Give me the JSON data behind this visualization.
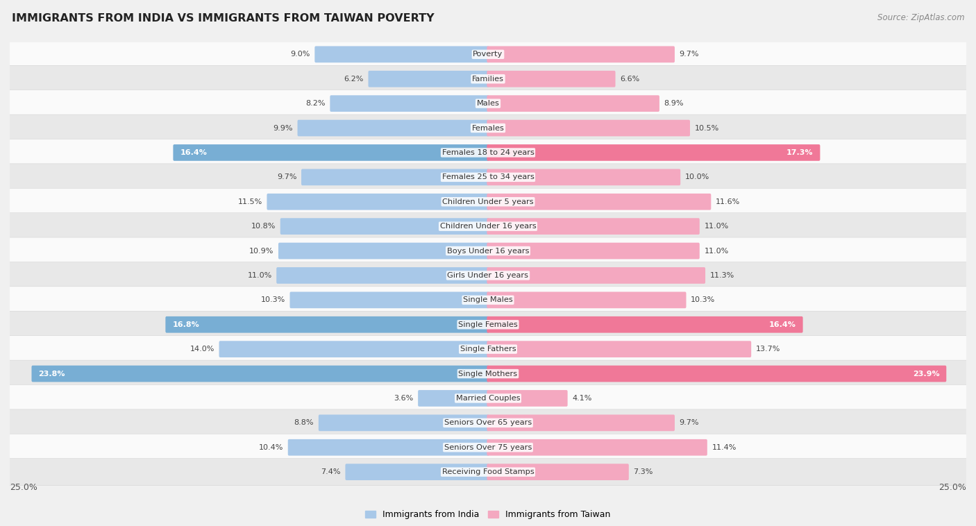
{
  "title": "IMMIGRANTS FROM INDIA VS IMMIGRANTS FROM TAIWAN POVERTY",
  "source": "Source: ZipAtlas.com",
  "categories": [
    "Poverty",
    "Families",
    "Males",
    "Females",
    "Females 18 to 24 years",
    "Females 25 to 34 years",
    "Children Under 5 years",
    "Children Under 16 years",
    "Boys Under 16 years",
    "Girls Under 16 years",
    "Single Males",
    "Single Females",
    "Single Fathers",
    "Single Mothers",
    "Married Couples",
    "Seniors Over 65 years",
    "Seniors Over 75 years",
    "Receiving Food Stamps"
  ],
  "india_values": [
    9.0,
    6.2,
    8.2,
    9.9,
    16.4,
    9.7,
    11.5,
    10.8,
    10.9,
    11.0,
    10.3,
    16.8,
    14.0,
    23.8,
    3.6,
    8.8,
    10.4,
    7.4
  ],
  "taiwan_values": [
    9.7,
    6.6,
    8.9,
    10.5,
    17.3,
    10.0,
    11.6,
    11.0,
    11.0,
    11.3,
    10.3,
    16.4,
    13.7,
    23.9,
    4.1,
    9.7,
    11.4,
    7.3
  ],
  "india_color_normal": "#a8c8e8",
  "taiwan_color_normal": "#f4a8c0",
  "india_color_highlight": "#78aed4",
  "taiwan_color_highlight": "#f07898",
  "highlight_rows": [
    4,
    11,
    13
  ],
  "xlim": 25.0,
  "bar_height": 0.55,
  "background_color": "#f0f0f0",
  "row_bg_white": "#fafafa",
  "row_bg_gray": "#e8e8e8",
  "legend_labels": [
    "Immigrants from India",
    "Immigrants from Taiwan"
  ],
  "label_fontsize": 8.0,
  "cat_fontsize": 8.2
}
